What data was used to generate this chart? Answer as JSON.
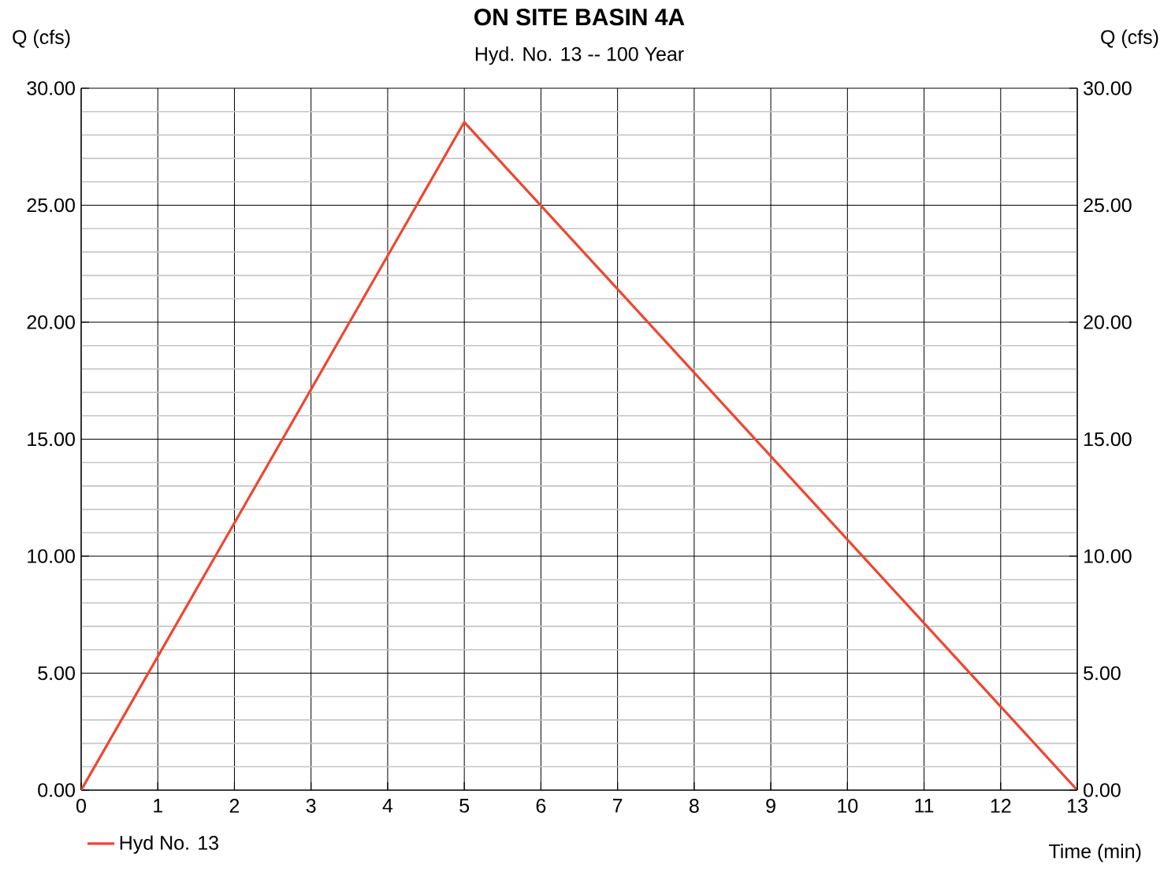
{
  "chart_data": {
    "type": "line",
    "title": "ON SITE BASIN 4A",
    "subtitle": "Hyd. No. 13 -- 100 Year",
    "xlabel": "Time (min)",
    "ylabel": "Q (cfs)",
    "y2label": "Q (cfs)",
    "x": [
      0,
      5,
      13
    ],
    "series": [
      {
        "name": "Hyd No. 13",
        "color": "#f04530",
        "values": [
          0,
          28.55,
          0
        ]
      }
    ],
    "xlim": [
      0,
      13
    ],
    "xticks": [
      0,
      1,
      2,
      3,
      4,
      5,
      6,
      7,
      8,
      9,
      10,
      11,
      12,
      13
    ],
    "ylim": [
      0,
      30
    ],
    "yticks": [
      {
        "value": 0,
        "label": "0.00"
      },
      {
        "value": 5,
        "label": "5.00"
      },
      {
        "value": 10,
        "label": "10.00"
      },
      {
        "value": 15,
        "label": "15.00"
      },
      {
        "value": 20,
        "label": "20.00"
      },
      {
        "value": 25,
        "label": "25.00"
      },
      {
        "value": 30,
        "label": "30.00"
      }
    ],
    "y2lim": [
      0,
      30
    ],
    "y2ticks": [
      {
        "value": 0,
        "label": "0.00"
      },
      {
        "value": 5,
        "label": "5.00"
      },
      {
        "value": 10,
        "label": "10.00"
      },
      {
        "value": 15,
        "label": "15.00"
      },
      {
        "value": 20,
        "label": "20.00"
      },
      {
        "value": 25,
        "label": "25.00"
      },
      {
        "value": 30,
        "label": "30.00"
      }
    ],
    "grid": true,
    "legend": "bottom left",
    "marker": "none",
    "line_style": "solid"
  }
}
